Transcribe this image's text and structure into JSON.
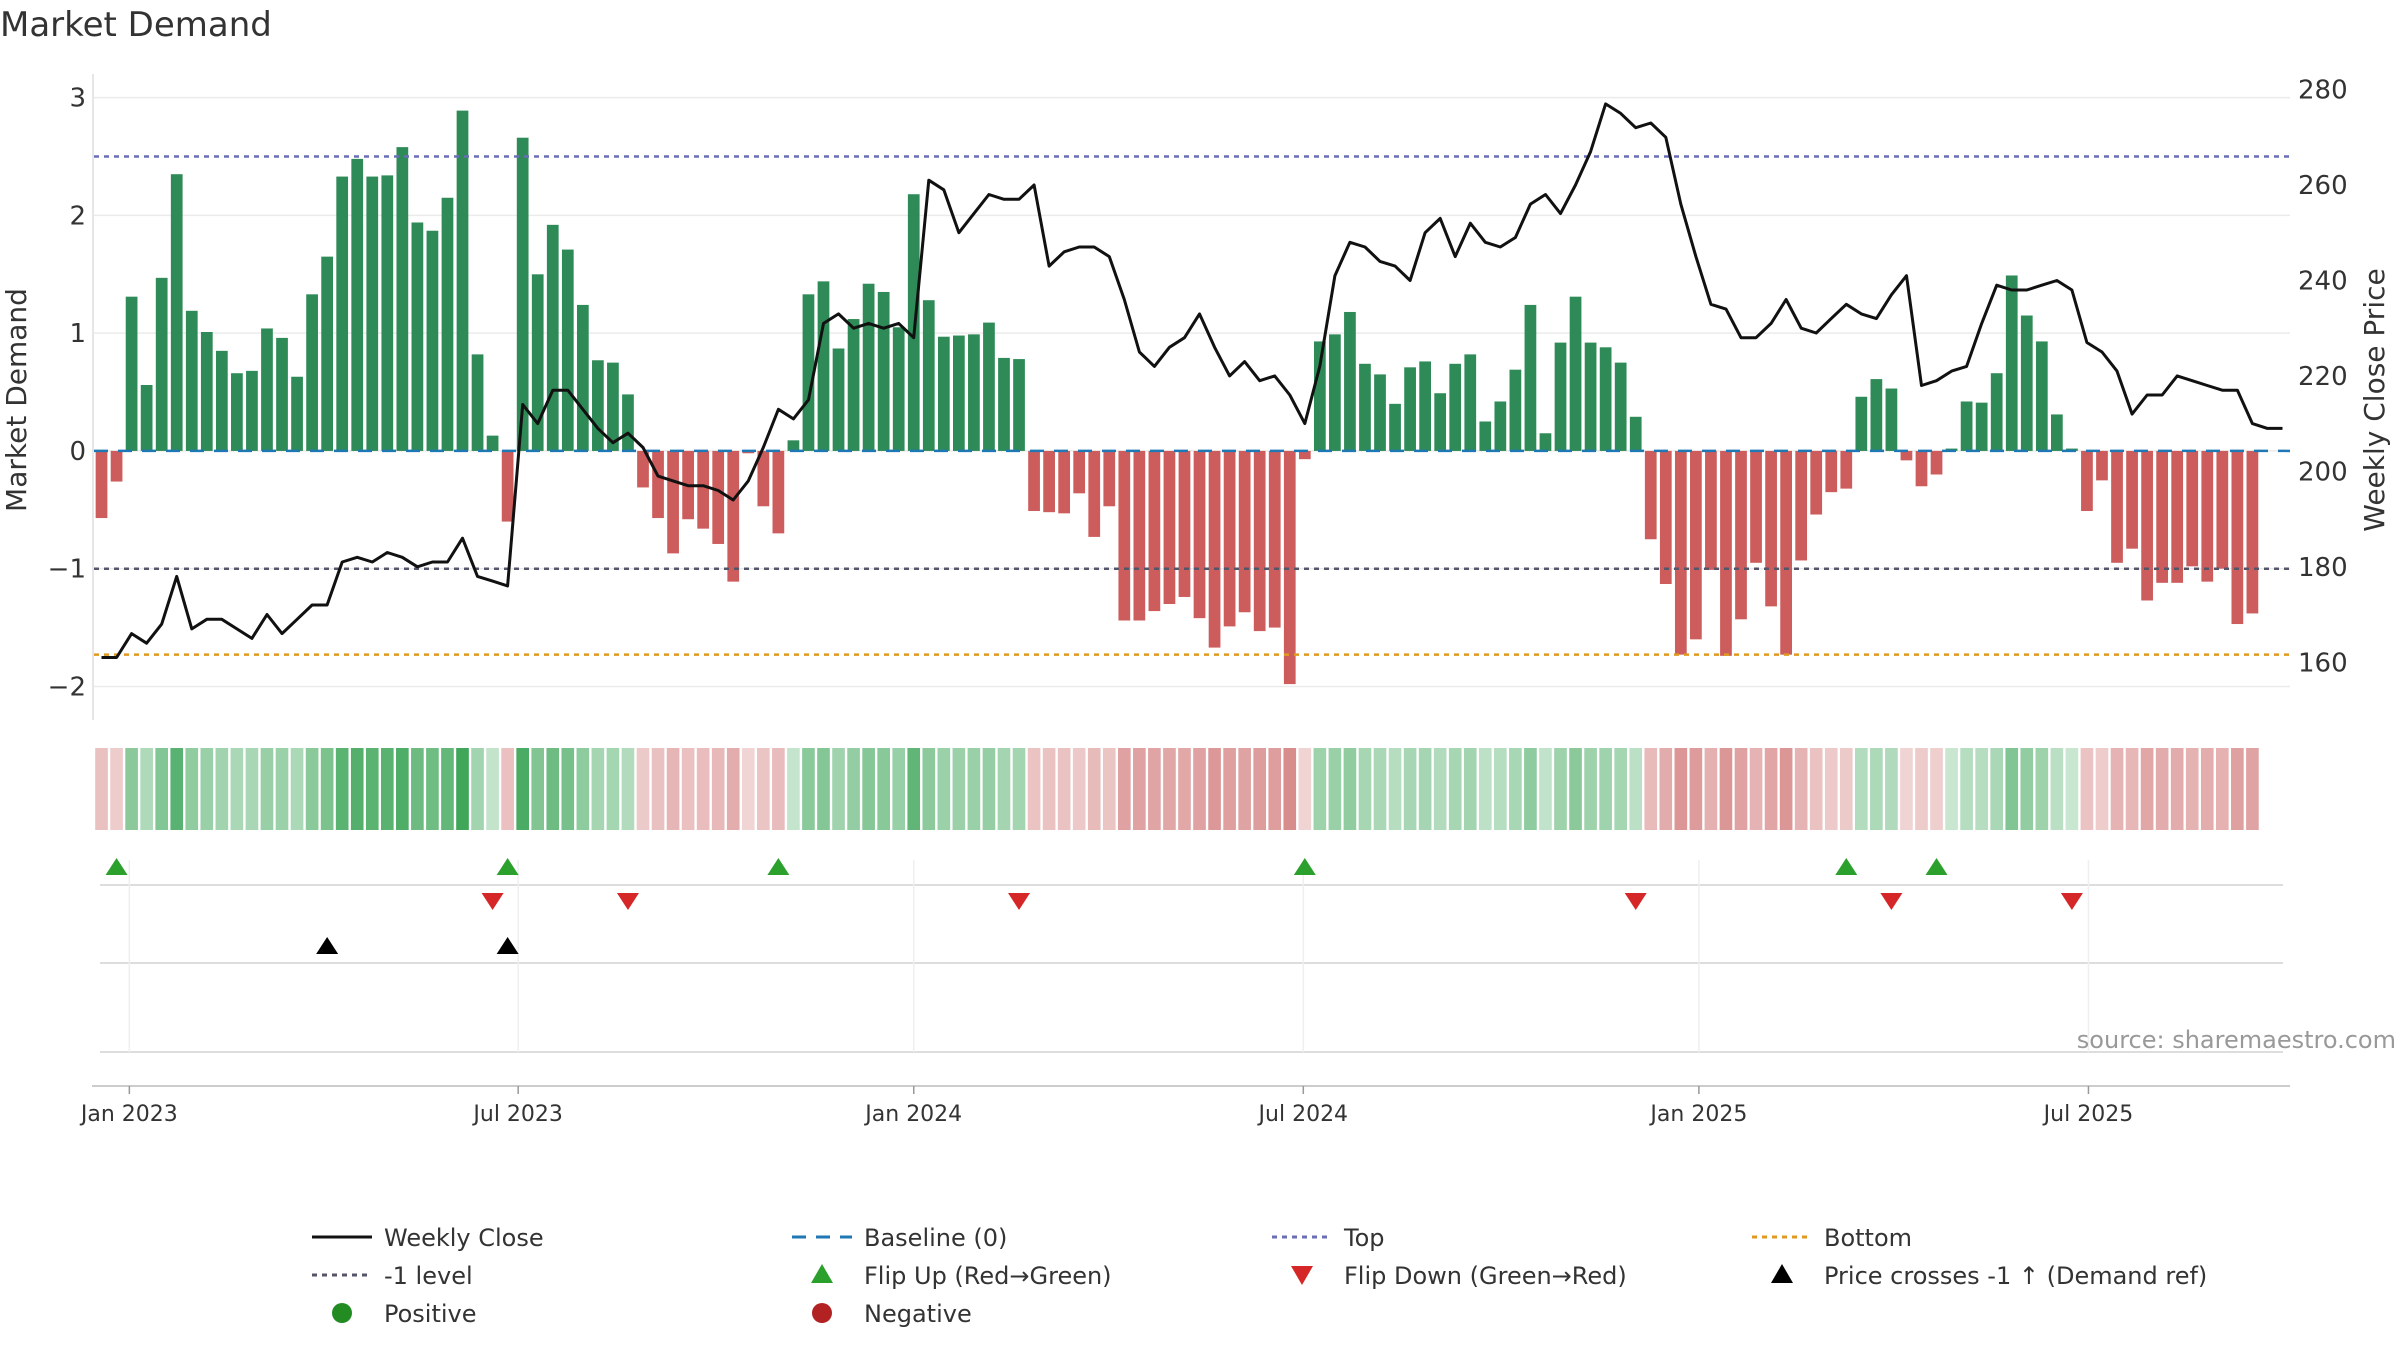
{
  "chart_data": {
    "type": "bar",
    "title": "Market Demand",
    "ylabel": "Market Demand",
    "y2label": "Weekly Close Price",
    "ylim": [
      -2.2,
      3.15
    ],
    "y2lim": [
      150,
      282
    ],
    "yticks": [
      -2,
      -1,
      0,
      1,
      2,
      3
    ],
    "yticklabels": [
      "−2",
      "−1",
      "0",
      "1",
      "2",
      "3"
    ],
    "y2ticks": [
      160,
      180,
      200,
      220,
      240,
      260,
      280
    ],
    "y2ticklabels": [
      "160",
      "180",
      "200",
      "220",
      "240",
      "260",
      "280"
    ],
    "start_date": "2022-12-30",
    "weeks": 146,
    "x_ticks": [
      {
        "label": "Jan 2023",
        "week": 2.35
      },
      {
        "label": "Jul 2023",
        "week": 28.2
      },
      {
        "label": "Jan 2024",
        "week": 54.5
      },
      {
        "label": "Jul 2024",
        "week": 80.4
      },
      {
        "label": "Jan 2025",
        "week": 106.7
      },
      {
        "label": "Jul 2025",
        "week": 132.6
      }
    ],
    "reference_lines": {
      "top": 2.5,
      "minus_one": -1,
      "bottom": -1.73,
      "baseline": 0
    },
    "demand": [
      -0.57,
      -0.26,
      1.31,
      0.56,
      1.47,
      2.35,
      1.19,
      1.01,
      0.85,
      0.66,
      0.68,
      1.04,
      0.96,
      0.63,
      1.33,
      1.65,
      2.33,
      2.48,
      2.33,
      2.34,
      2.58,
      1.94,
      1.87,
      2.15,
      2.89,
      0.82,
      0.13,
      -0.6,
      2.66,
      1.5,
      1.92,
      1.71,
      1.24,
      0.77,
      0.75,
      0.48,
      -0.31,
      -0.57,
      -0.87,
      -0.58,
      -0.66,
      -0.79,
      -1.11,
      -0.02,
      -0.47,
      -0.7,
      0.09,
      1.33,
      1.44,
      0.87,
      1.12,
      1.42,
      1.35,
      1.05,
      2.18,
      1.28,
      0.97,
      0.98,
      0.99,
      1.09,
      0.79,
      0.78,
      -0.51,
      -0.52,
      -0.53,
      -0.36,
      -0.73,
      -0.47,
      -1.44,
      -1.44,
      -1.36,
      -1.3,
      -1.24,
      -1.42,
      -1.67,
      -1.49,
      -1.37,
      -1.53,
      -1.5,
      -1.98,
      -0.07,
      0.93,
      0.99,
      1.18,
      0.74,
      0.65,
      0.4,
      0.71,
      0.76,
      0.49,
      0.74,
      0.82,
      0.25,
      0.42,
      0.69,
      1.24,
      0.15,
      0.92,
      1.31,
      0.92,
      0.88,
      0.75,
      0.29,
      -0.75,
      -1.13,
      -1.73,
      -1.6,
      -1.01,
      -1.74,
      -1.43,
      -0.95,
      -1.32,
      -1.73,
      -0.93,
      -0.54,
      -0.35,
      -0.32,
      0.46,
      0.61,
      0.53,
      -0.08,
      -0.3,
      -0.2,
      0.02,
      0.42,
      0.41,
      0.66,
      1.49,
      1.15,
      0.93,
      0.31,
      0.02,
      -0.51,
      -0.25,
      -0.95,
      -0.83,
      -1.27,
      -1.12,
      -1.12,
      -0.98,
      -1.11,
      -1.0,
      -1.47,
      -1.38
    ],
    "price": [
      161,
      161,
      166,
      164,
      168,
      178,
      167,
      169,
      169,
      167,
      165,
      170,
      166,
      169,
      172,
      172,
      181,
      182,
      181,
      183,
      182,
      180,
      181,
      181,
      186,
      178,
      177,
      176,
      214,
      210,
      217,
      217,
      213,
      209,
      206,
      208,
      205,
      199,
      198,
      197,
      197,
      196,
      194,
      198,
      205,
      213,
      211,
      215,
      231,
      233,
      230,
      231,
      230,
      231,
      228,
      261,
      259,
      250,
      254,
      258,
      257,
      257,
      260,
      243,
      246,
      247,
      247,
      245,
      236,
      225,
      222,
      226,
      228,
      233,
      226,
      220,
      223,
      219,
      220,
      216,
      210,
      222,
      241,
      248,
      247,
      244,
      243,
      240,
      250,
      253,
      245,
      252,
      248,
      247,
      249,
      256,
      258,
      254,
      260,
      267,
      277,
      275,
      272,
      273,
      270,
      256,
      245,
      235,
      234,
      228,
      228,
      231,
      236,
      230,
      229,
      232,
      235,
      233,
      232,
      237,
      241,
      218,
      219,
      221,
      222,
      231,
      239,
      238,
      238,
      239,
      240,
      238,
      227,
      225,
      221,
      212,
      216,
      216,
      220,
      219,
      218,
      217,
      217,
      210,
      209,
      209
    ],
    "flip_up_weeks": [
      1,
      27,
      45,
      80,
      116,
      122
    ],
    "flip_down_weeks": [
      26,
      35,
      61,
      102,
      119,
      131
    ],
    "price_cross_weeks": [
      15,
      27
    ],
    "source": "source: sharemaestro.com",
    "legend": {
      "weekly_close": "Weekly Close",
      "baseline": "Baseline (0)",
      "top": "Top",
      "bottom": "Bottom",
      "minus_one": "-1 level",
      "flip_up": "Flip Up (Red→Green)",
      "flip_down": "Flip Down (Green→Red)",
      "price_cross": "Price crosses -1 ↑ (Demand ref)",
      "positive": "Positive",
      "negative": "Negative"
    },
    "colors": {
      "positive": "#2e8b57",
      "negative": "#cd5c5c",
      "price_line": "#111111",
      "baseline": "#1f77b4",
      "top_line": "#6a6fb5",
      "minus_one_line": "#55556a",
      "bottom_line": "#e09a20",
      "flip_up": "#2ca02c",
      "flip_down": "#d62728",
      "cross_marker": "#000000",
      "positive_dot": "#228b22",
      "negative_dot": "#b22222"
    }
  }
}
